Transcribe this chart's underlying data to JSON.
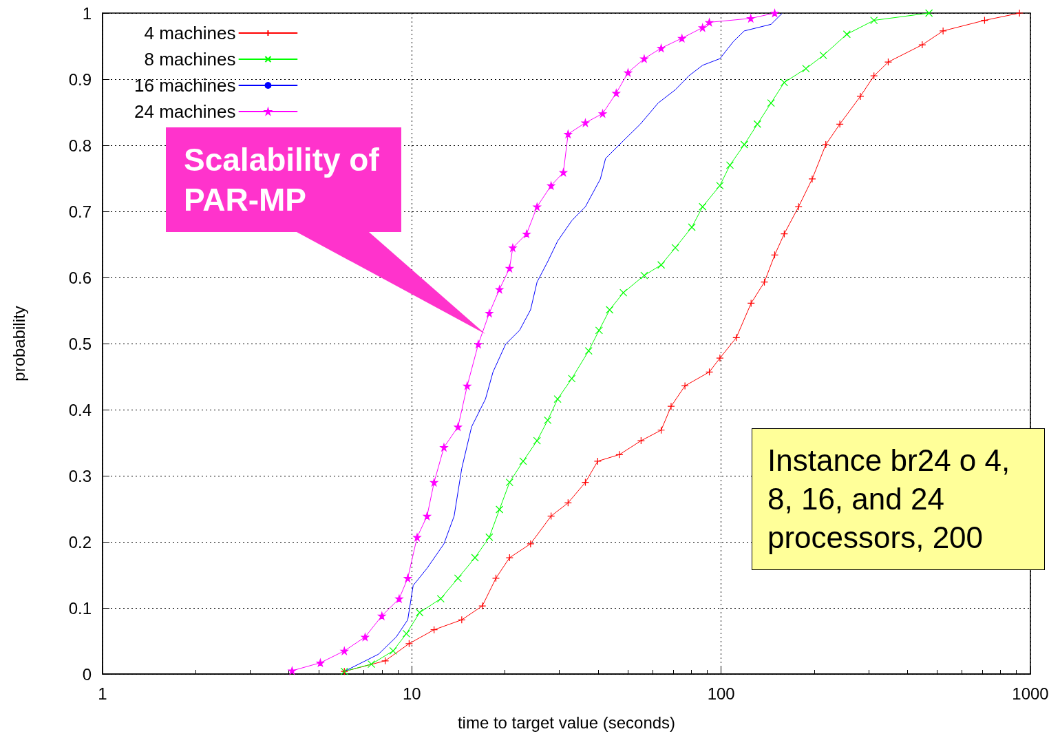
{
  "chart_data": {
    "type": "line",
    "xlabel": "time to target value (seconds)",
    "ylabel": "probability",
    "log": "x",
    "xlim": [
      1,
      1000
    ],
    "xticks": [
      1,
      10,
      100,
      1000
    ],
    "ylim": [
      0,
      1
    ],
    "yticks": [
      0,
      0.1,
      0.2,
      0.3,
      0.4,
      0.5,
      0.6,
      0.7,
      0.8,
      0.9,
      1
    ],
    "grid": true,
    "legend": "top left",
    "line_style": "solid",
    "annotations": [
      "Scalability of PAR-MP",
      "Instance br24 o 4, 8, 16, and 24 processors, 200"
    ],
    "series": [
      {
        "name": "4 machines",
        "color": "#ff0000",
        "marker": "cross",
        "x": [
          6.05,
          8.2,
          9.8,
          11.8,
          14.5,
          16.9,
          18.7,
          20.7,
          24.2,
          28.2,
          32.0,
          36.4,
          39.9,
          46.9,
          55.1,
          64.0,
          68.9,
          76.4,
          91.6,
          99.1,
          112,
          125,
          138,
          149,
          160,
          178,
          197,
          218,
          242,
          282,
          312,
          347,
          447,
          522,
          711,
          922
        ],
        "values": [
          0.004,
          0.02,
          0.046,
          0.067,
          0.082,
          0.103,
          0.145,
          0.176,
          0.197,
          0.239,
          0.259,
          0.29,
          0.322,
          0.332,
          0.353,
          0.369,
          0.405,
          0.436,
          0.457,
          0.478,
          0.509,
          0.561,
          0.593,
          0.634,
          0.666,
          0.707,
          0.749,
          0.801,
          0.832,
          0.874,
          0.905,
          0.926,
          0.952,
          0.973,
          0.989,
          1.0
        ]
      },
      {
        "name": "8 machines",
        "color": "#00ff00",
        "marker": "cross",
        "x": [
          6.05,
          7.4,
          8.7,
          9.6,
          10.6,
          12.4,
          14.1,
          16.0,
          17.8,
          19.2,
          20.7,
          22.9,
          25.4,
          27.5,
          29.6,
          32.9,
          37.3,
          40.3,
          43.6,
          48.3,
          56.4,
          64.0,
          71.1,
          80.4,
          87.1,
          99.1,
          106.8,
          118.8,
          131,
          145,
          160,
          188,
          214,
          255,
          312,
          470
        ],
        "values": [
          0.004,
          0.015,
          0.035,
          0.061,
          0.093,
          0.114,
          0.145,
          0.176,
          0.207,
          0.249,
          0.29,
          0.322,
          0.353,
          0.384,
          0.416,
          0.447,
          0.489,
          0.52,
          0.551,
          0.577,
          0.603,
          0.619,
          0.645,
          0.676,
          0.707,
          0.739,
          0.77,
          0.801,
          0.832,
          0.864,
          0.895,
          0.916,
          0.936,
          0.968,
          0.989,
          1.0
        ]
      },
      {
        "name": "16 machines",
        "color": "#0000ff",
        "marker": "none",
        "x": [
          6.05,
          7.8,
          8.9,
          9.7,
          10.1,
          11.2,
          12.7,
          13.7,
          14.5,
          15.6,
          17.3,
          18.3,
          20.1,
          22.3,
          24.2,
          25.4,
          27.5,
          29.6,
          32.9,
          36.4,
          40.7,
          42.3,
          49.3,
          54.8,
          62.6,
          71.1,
          78.6,
          87.1,
          99.1,
          109.6,
          118.8,
          145,
          157
        ],
        "values": [
          0.004,
          0.03,
          0.056,
          0.082,
          0.134,
          0.16,
          0.197,
          0.239,
          0.311,
          0.374,
          0.416,
          0.457,
          0.499,
          0.52,
          0.551,
          0.593,
          0.624,
          0.655,
          0.686,
          0.707,
          0.749,
          0.78,
          0.811,
          0.832,
          0.864,
          0.884,
          0.905,
          0.921,
          0.931,
          0.957,
          0.973,
          0.983,
          0.999
        ]
      },
      {
        "name": "24 machines",
        "color": "#ff00ff",
        "marker": "star",
        "x": [
          4.1,
          5.06,
          6.05,
          7.06,
          8.0,
          9.1,
          9.7,
          10.4,
          11.2,
          11.8,
          12.7,
          14.1,
          15.1,
          16.4,
          17.8,
          19.2,
          20.7,
          21.2,
          23.5,
          25.4,
          28.2,
          30.9,
          32.0,
          36.4,
          41.4,
          45.8,
          50.0,
          56.4,
          64.0,
          74.7,
          87.1,
          91.6,
          124.7,
          149
        ],
        "values": [
          0.005,
          0.017,
          0.035,
          0.056,
          0.088,
          0.114,
          0.145,
          0.207,
          0.239,
          0.29,
          0.343,
          0.374,
          0.436,
          0.499,
          0.546,
          0.582,
          0.614,
          0.645,
          0.666,
          0.707,
          0.739,
          0.759,
          0.817,
          0.834,
          0.848,
          0.879,
          0.91,
          0.931,
          0.947,
          0.962,
          0.978,
          0.986,
          0.992,
          1.0
        ]
      }
    ]
  }
}
